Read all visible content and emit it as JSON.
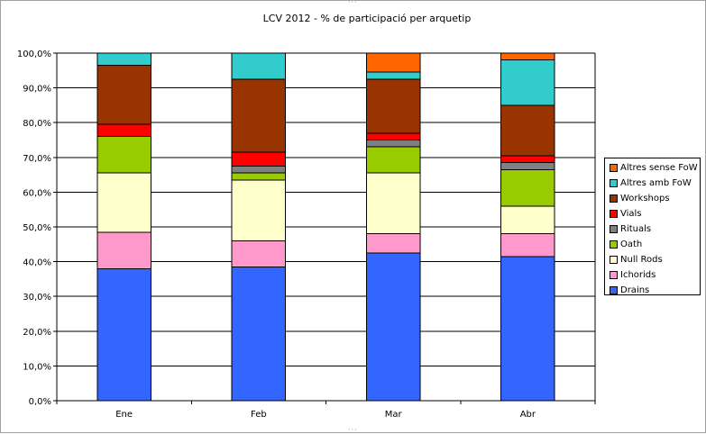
{
  "chart_data": {
    "type": "bar",
    "stacked": true,
    "percent": true,
    "title": "LCV 2012 - % de participació per arquetip",
    "xlabel": "",
    "ylabel": "",
    "ylim": [
      0,
      100
    ],
    "yticks": [
      "0,0%",
      "10,0%",
      "20,0%",
      "30,0%",
      "40,0%",
      "50,0%",
      "60,0%",
      "70,0%",
      "80,0%",
      "90,0%",
      "100,0%"
    ],
    "grid": true,
    "legend_position": "right",
    "categories": [
      "Ene",
      "Feb",
      "Mar",
      "Abr"
    ],
    "series": [
      {
        "name": "Drains",
        "color": "#3366FF",
        "values": [
          38.0,
          38.5,
          42.5,
          41.5
        ]
      },
      {
        "name": "Ichorids",
        "color": "#FF99CC",
        "values": [
          10.5,
          7.5,
          5.5,
          6.5
        ]
      },
      {
        "name": "Null Rods",
        "color": "#FFFFCC",
        "values": [
          17.0,
          17.5,
          17.5,
          8.0
        ]
      },
      {
        "name": "Oath",
        "color": "#99CC00",
        "values": [
          10.5,
          2.0,
          7.5,
          10.5
        ]
      },
      {
        "name": "Rituals",
        "color": "#808080",
        "values": [
          0.0,
          2.0,
          2.0,
          2.0
        ]
      },
      {
        "name": "Vials",
        "color": "#FF0000",
        "values": [
          3.5,
          4.0,
          2.0,
          2.0
        ]
      },
      {
        "name": "Workshops",
        "color": "#993300",
        "values": [
          17.0,
          21.0,
          15.5,
          14.5
        ]
      },
      {
        "name": "Altres amb FoW",
        "color": "#33CCCC",
        "values": [
          3.5,
          7.5,
          2.0,
          13.0
        ]
      },
      {
        "name": "Altres sense FoW",
        "color": "#FF6600",
        "values": [
          0.0,
          0.0,
          5.5,
          2.0
        ]
      }
    ]
  }
}
